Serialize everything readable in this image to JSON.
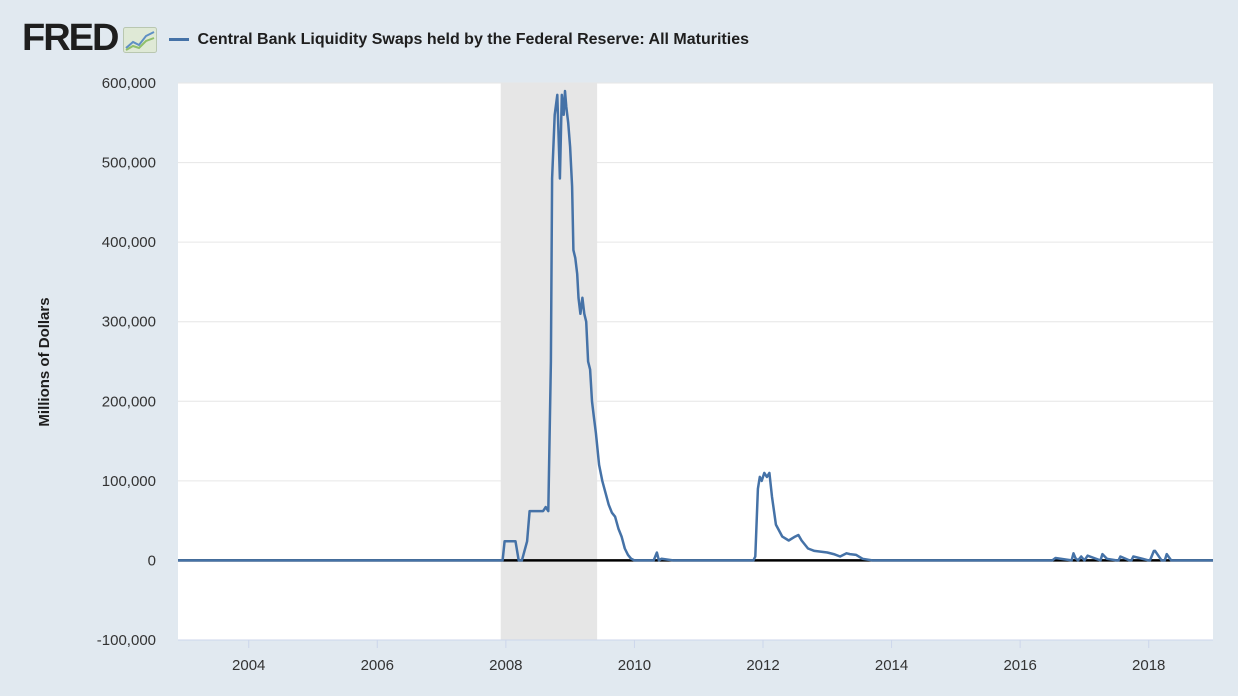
{
  "header": {
    "logo_text": "FRED",
    "series_title": "Central Bank Liquidity Swaps held by the Federal Reserve: All Maturities"
  },
  "colors": {
    "background": "#e1e9f0",
    "plot_area": "#ffffff",
    "series_line": "#4572a7",
    "recession_shade": "#e6e6e6",
    "zero_line": "#000000"
  },
  "chart_data": {
    "type": "line",
    "title": "Central Bank Liquidity Swaps held by the Federal Reserve: All Maturities",
    "xlabel": "",
    "ylabel": "Millions of Dollars",
    "xlim": [
      2002.9,
      2019.0
    ],
    "ylim": [
      -100000,
      600000
    ],
    "grid": "horizontal",
    "y_ticks": [
      -100000,
      0,
      100000,
      200000,
      300000,
      400000,
      500000,
      600000
    ],
    "y_tick_labels": [
      "-100,000",
      "0",
      "100,000",
      "200,000",
      "300,000",
      "400,000",
      "500,000",
      "600,000"
    ],
    "x_ticks": [
      2004,
      2006,
      2008,
      2010,
      2012,
      2014,
      2016,
      2018
    ],
    "x_tick_labels": [
      "2004",
      "2006",
      "2008",
      "2010",
      "2012",
      "2014",
      "2016",
      "2018"
    ],
    "recession": [
      2007.92,
      2009.42
    ],
    "series": [
      {
        "name": "Central Bank Liquidity Swaps held by the Federal Reserve: All Maturities",
        "x": [
          2002.9,
          2007.95,
          2007.98,
          2008.05,
          2008.15,
          2008.2,
          2008.25,
          2008.33,
          2008.37,
          2008.45,
          2008.58,
          2008.62,
          2008.66,
          2008.7,
          2008.72,
          2008.76,
          2008.8,
          2008.84,
          2008.87,
          2008.9,
          2008.92,
          2008.94,
          2008.97,
          2009.0,
          2009.03,
          2009.05,
          2009.08,
          2009.11,
          2009.13,
          2009.16,
          2009.19,
          2009.22,
          2009.25,
          2009.28,
          2009.31,
          2009.34,
          2009.37,
          2009.4,
          2009.45,
          2009.5,
          2009.55,
          2009.6,
          2009.65,
          2009.7,
          2009.75,
          2009.8,
          2009.85,
          2009.9,
          2009.95,
          2010.0,
          2010.05,
          2010.1,
          2010.3,
          2010.35,
          2010.38,
          2010.42,
          2010.6,
          2011.85,
          2011.88,
          2011.92,
          2011.95,
          2011.98,
          2012.02,
          2012.06,
          2012.1,
          2012.14,
          2012.2,
          2012.3,
          2012.4,
          2012.5,
          2012.55,
          2012.6,
          2012.7,
          2012.8,
          2013.0,
          2013.1,
          2013.2,
          2013.3,
          2013.35,
          2013.45,
          2013.55,
          2013.7,
          2016.5,
          2016.55,
          2016.8,
          2016.83,
          2016.86,
          2016.9,
          2016.95,
          2017.0,
          2017.05,
          2017.25,
          2017.28,
          2017.35,
          2017.5,
          2017.53,
          2017.56,
          2017.7,
          2017.73,
          2017.76,
          2018.0,
          2018.02,
          2018.08,
          2018.1,
          2018.2,
          2018.25,
          2018.28,
          2018.35,
          2019.0
        ],
        "values": [
          0,
          0,
          24000,
          24000,
          24000,
          0,
          0,
          24000,
          62000,
          62000,
          62000,
          67000,
          62000,
          250000,
          480000,
          560000,
          585000,
          480000,
          585000,
          560000,
          590000,
          570000,
          550000,
          520000,
          470000,
          390000,
          380000,
          360000,
          330000,
          310000,
          330000,
          310000,
          300000,
          250000,
          240000,
          200000,
          180000,
          160000,
          120000,
          100000,
          85000,
          70000,
          60000,
          55000,
          40000,
          30000,
          15000,
          7000,
          2000,
          0,
          0,
          0,
          0,
          10000,
          0,
          2000,
          0,
          0,
          5000,
          90000,
          105000,
          100000,
          110000,
          105000,
          110000,
          80000,
          45000,
          30000,
          25000,
          30000,
          32000,
          25000,
          15000,
          12000,
          10000,
          8000,
          5000,
          9000,
          8000,
          7000,
          2000,
          0,
          0,
          3000,
          0,
          9000,
          3000,
          0,
          5000,
          0,
          6000,
          0,
          8000,
          2000,
          0,
          0,
          5000,
          0,
          0,
          5000,
          0,
          0,
          12000,
          12000,
          0,
          0,
          8000,
          0,
          0
        ]
      }
    ]
  }
}
